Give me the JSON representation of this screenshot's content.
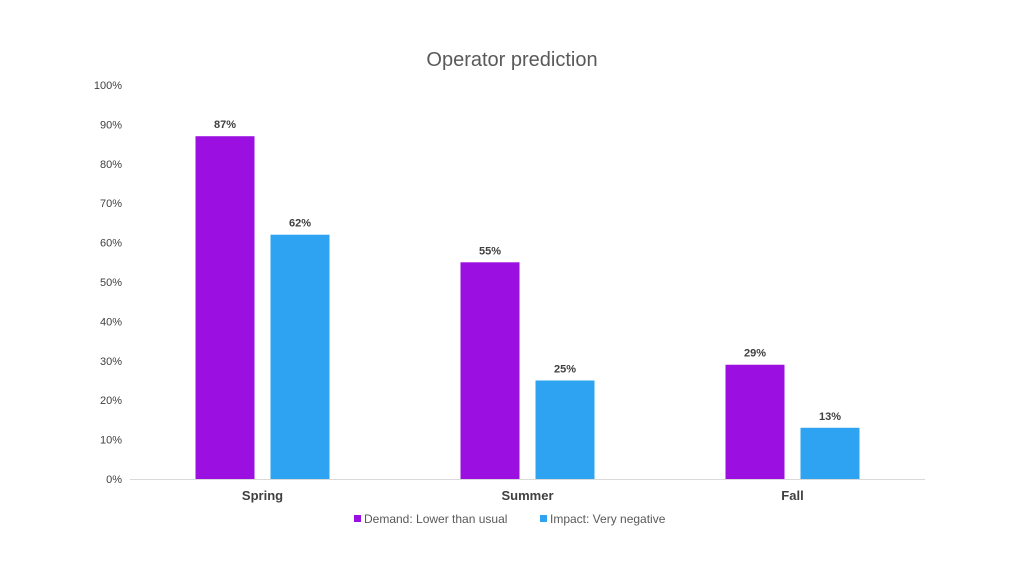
{
  "chart_data": {
    "type": "bar",
    "title": "Operator prediction",
    "xlabel": "",
    "ylabel": "",
    "categories": [
      "Spring",
      "Summer",
      "Fall"
    ],
    "series": [
      {
        "name": "Demand: Lower than usual",
        "values": [
          87,
          55,
          29
        ],
        "color": "#9b0fe0"
      },
      {
        "name": "Impact: Very negative",
        "values": [
          62,
          25,
          13
        ],
        "color": "#2ea3f2"
      }
    ],
    "ylim": [
      0,
      100
    ],
    "yticks": [
      0,
      10,
      20,
      30,
      40,
      50,
      60,
      70,
      80,
      90,
      100
    ],
    "ytick_labels": [
      "0%",
      "10%",
      "20%",
      "30%",
      "40%",
      "50%",
      "60%",
      "70%",
      "80%",
      "90%",
      "100%"
    ],
    "data_labels": [
      [
        "87%",
        "55%",
        "29%"
      ],
      [
        "62%",
        "25%",
        "13%"
      ]
    ],
    "grid": false,
    "legend_position": "bottom"
  }
}
